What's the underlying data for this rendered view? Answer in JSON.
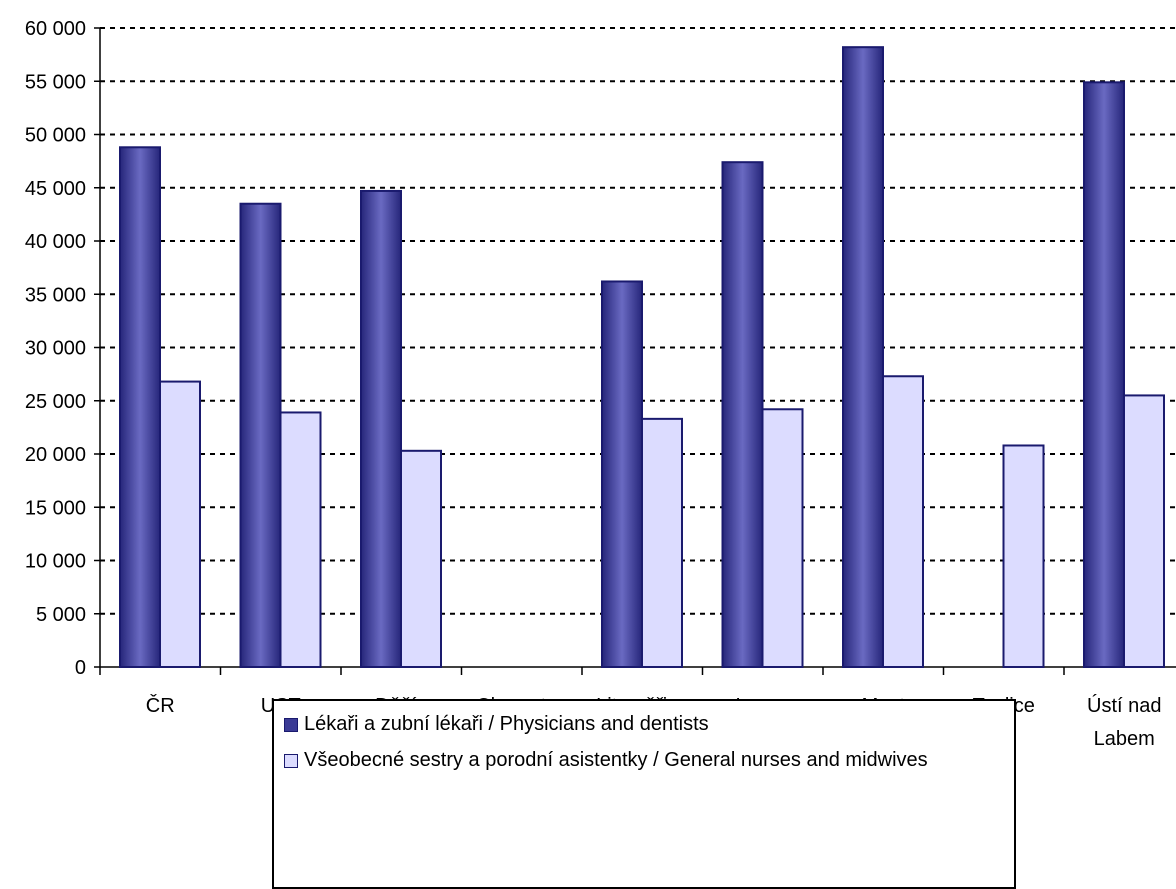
{
  "chart_data": {
    "type": "bar",
    "categories": [
      "ČR",
      "UST",
      "Děčín",
      "Chomutov",
      "Litoměřice",
      "Louny",
      "Most",
      "Teplice",
      "Ústí nad\nLabem"
    ],
    "series": [
      {
        "name": "Lékaři a zubní lékaři / Physicians and dentists",
        "values": [
          48800,
          43500,
          44700,
          null,
          36200,
          47400,
          58200,
          null,
          54900
        ],
        "color": "#3b3b95"
      },
      {
        "name": "Všeobecné sestry a porodní asistentky / General nurses and midwives",
        "values": [
          26800,
          23900,
          20300,
          null,
          23300,
          24200,
          27300,
          20800,
          25500
        ],
        "color": "#dcdcff"
      }
    ],
    "ylim": [
      0,
      60000
    ],
    "yticks": [
      "0",
      "5 000",
      "10 000",
      "15 000",
      "20 000",
      "25 000",
      "30 000",
      "35 000",
      "40 000",
      "45 000",
      "50 000",
      "55 000",
      "60 000"
    ],
    "grid": true,
    "legend_position": "bottom"
  }
}
